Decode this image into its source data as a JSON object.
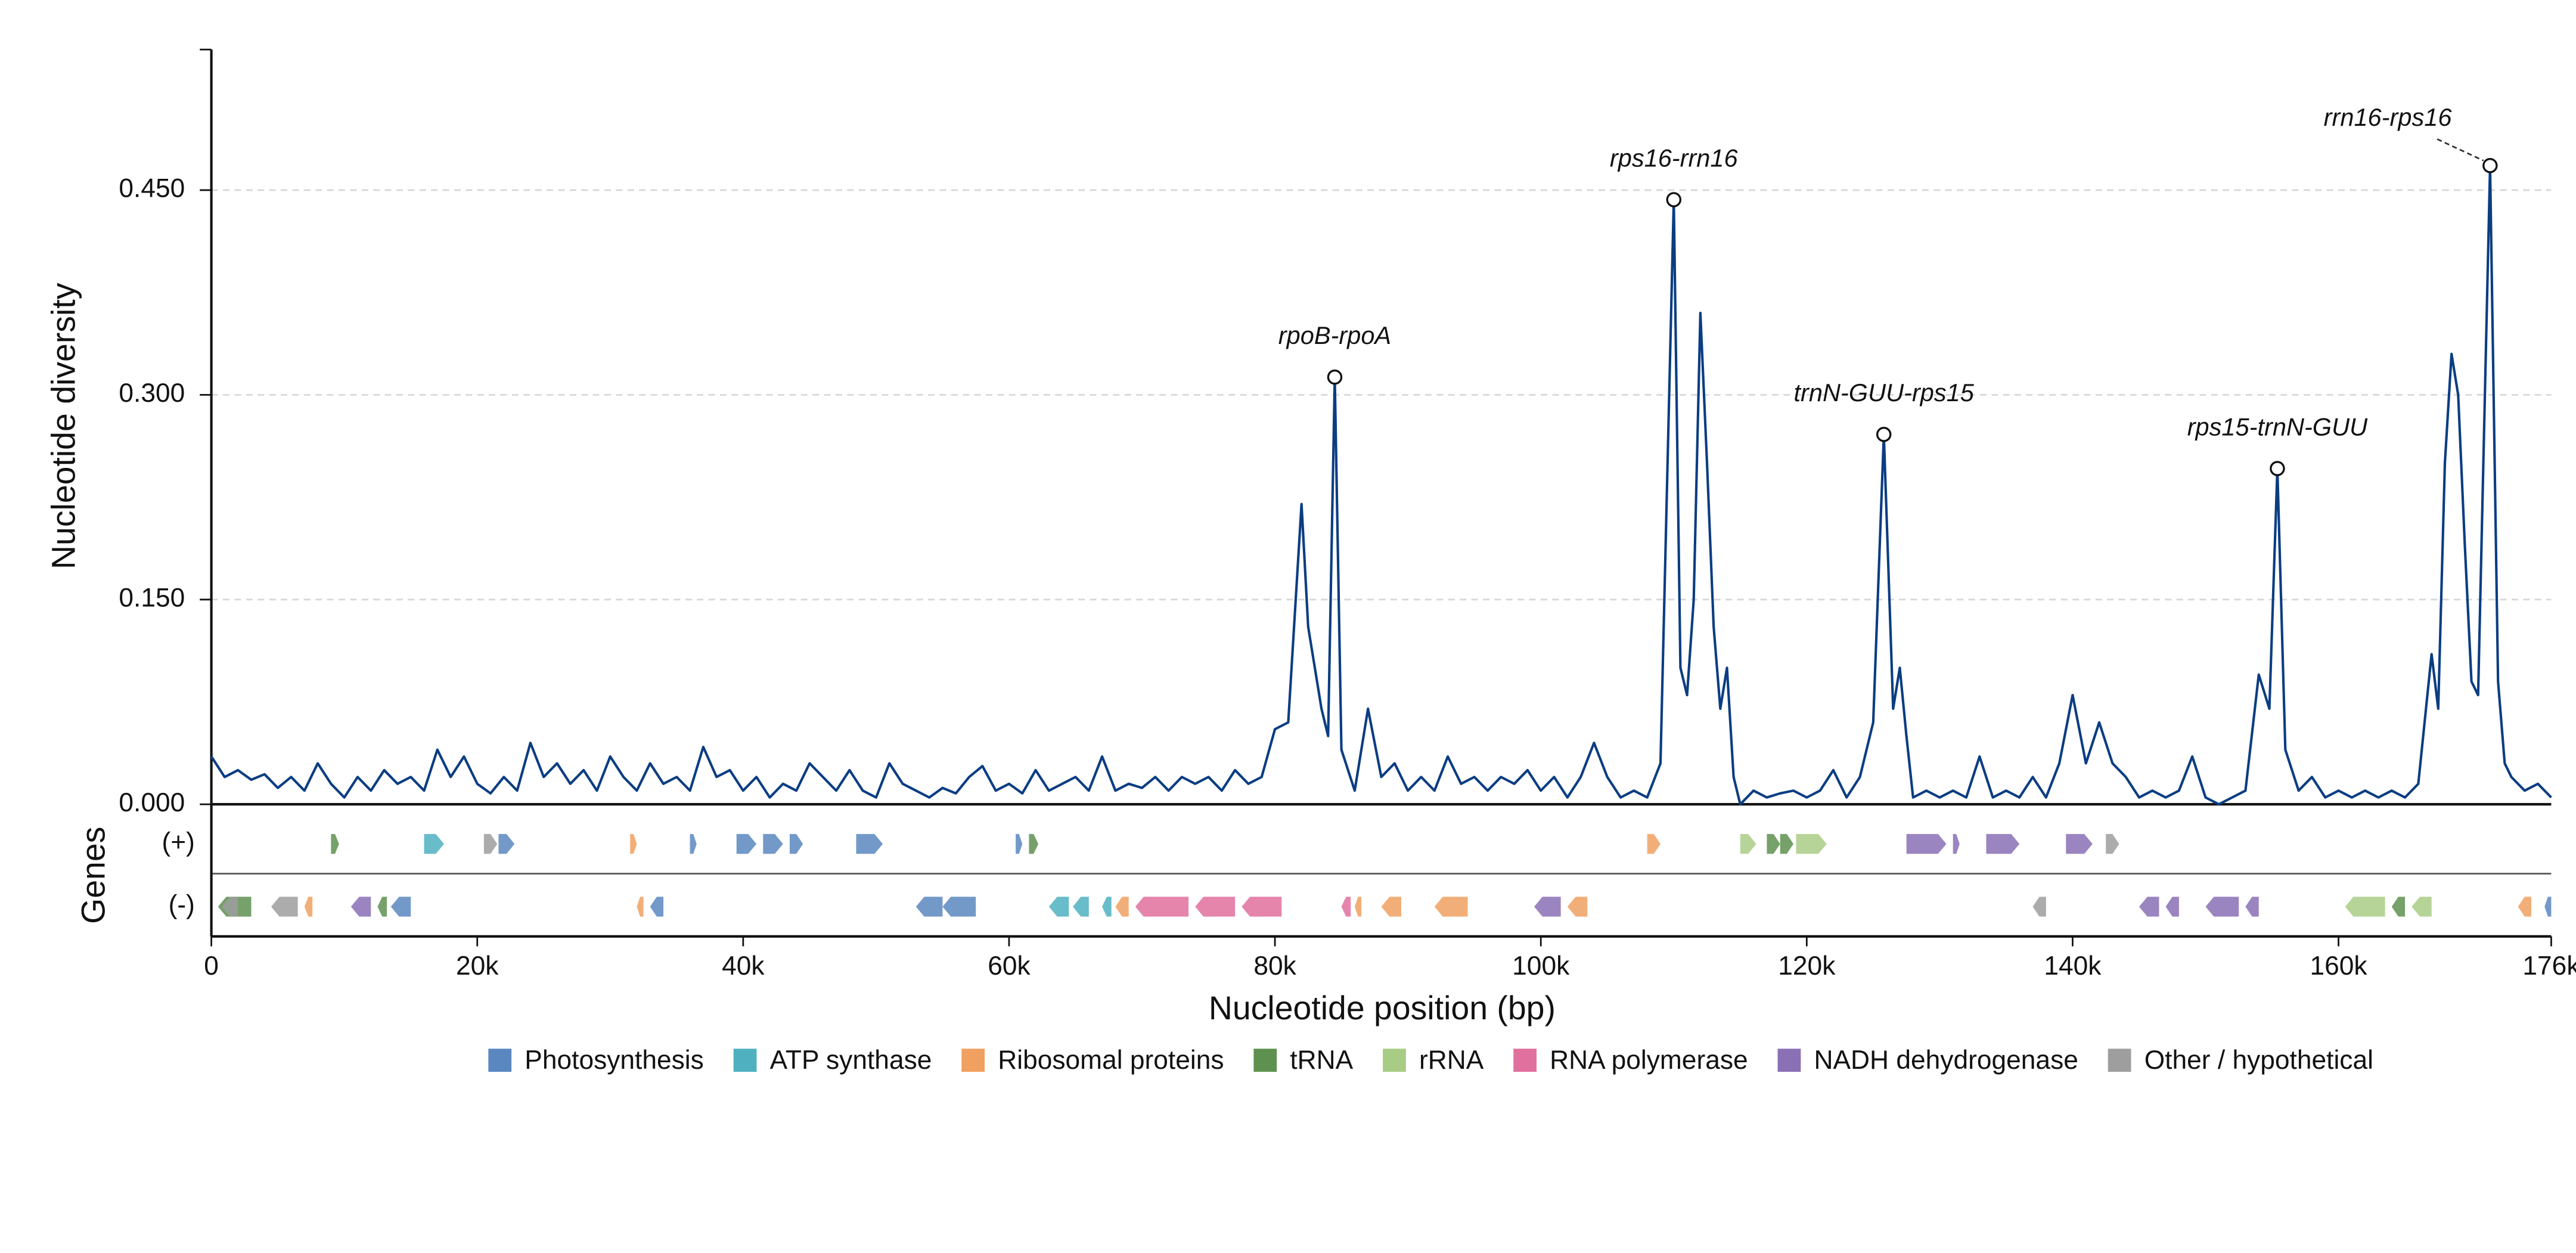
{
  "chart_data": {
    "type": "line",
    "y_label": "Nucleotide diversity",
    "x_label": "Nucleotide position (bp)",
    "track_label": "Genes",
    "strand_labels": [
      "(+)",
      "(-)"
    ],
    "color": "#0b3d82",
    "xlim": [
      0,
      176000
    ],
    "ylim": [
      0,
      0.553
    ],
    "xticks": [
      0,
      {
        "value": 20000,
        "label": "20k"
      },
      {
        "value": 40000,
        "label": "40k"
      },
      {
        "value": 60000,
        "label": "60k"
      },
      {
        "value": 80000,
        "label": "80k"
      },
      {
        "value": 100000,
        "label": "100k"
      },
      {
        "value": 120000,
        "label": "120k"
      },
      {
        "value": 140000,
        "label": "140k"
      },
      {
        "value": 160000,
        "label": "160k"
      },
      {
        "value": 176000,
        "label": "176k"
      }
    ],
    "yticks": [
      {
        "value": 0,
        "label": "0.000"
      },
      {
        "value": 0.15,
        "label": "0.150"
      },
      {
        "value": 0.3,
        "label": "0.300"
      },
      {
        "value": 0.45,
        "label": "0.450"
      }
    ],
    "grid": true,
    "x": [
      0,
      1000,
      2000,
      3000,
      4000,
      5000,
      6000,
      7000,
      8000,
      9000,
      10000,
      11000,
      12000,
      13000,
      14000,
      15000,
      16000,
      17000,
      18000,
      19000,
      20000,
      21000,
      22000,
      23000,
      24000,
      25000,
      26000,
      27000,
      28000,
      29000,
      30000,
      31000,
      32000,
      33000,
      34000,
      35000,
      36000,
      37000,
      38000,
      39000,
      40000,
      41000,
      42000,
      43000,
      44000,
      45000,
      46000,
      47000,
      48000,
      49000,
      50000,
      51000,
      52000,
      53000,
      54000,
      55000,
      56000,
      57000,
      58000,
      59000,
      60000,
      61000,
      62000,
      63000,
      64000,
      65000,
      66000,
      67000,
      68000,
      69000,
      70000,
      71000,
      72000,
      73000,
      74000,
      75000,
      76000,
      77000,
      78000,
      79000,
      80000,
      81000,
      82000,
      82500,
      83000,
      83500,
      84000,
      84500,
      85000,
      86000,
      87000,
      88000,
      89000,
      90000,
      91000,
      92000,
      93000,
      94000,
      95000,
      96000,
      97000,
      98000,
      99000,
      100000,
      101000,
      102000,
      103000,
      104000,
      105000,
      106000,
      107000,
      108000,
      109000,
      110000,
      110500,
      111000,
      111500,
      112000,
      112500,
      113000,
      113500,
      114000,
      114500,
      115000,
      116000,
      117000,
      118000,
      119000,
      120000,
      121000,
      122000,
      123000,
      124000,
      125000,
      125800,
      126500,
      127000,
      127500,
      128000,
      129000,
      130000,
      131000,
      132000,
      133000,
      134000,
      135000,
      136000,
      137000,
      138000,
      139000,
      140000,
      141000,
      142000,
      143000,
      144000,
      145000,
      146000,
      147000,
      148000,
      149000,
      150000,
      151000,
      152000,
      153000,
      154000,
      154800,
      155400,
      156000,
      157000,
      158000,
      159000,
      160000,
      161000,
      162000,
      163000,
      164000,
      165000,
      166000,
      167000,
      167500,
      168000,
      168500,
      169000,
      169500,
      170000,
      170500,
      171400,
      172000,
      172500,
      173000,
      174000,
      175000,
      176000
    ],
    "values": [
      0.035,
      0.02,
      0.025,
      0.018,
      0.022,
      0.012,
      0.02,
      0.01,
      0.03,
      0.015,
      0.005,
      0.02,
      0.01,
      0.025,
      0.015,
      0.02,
      0.01,
      0.04,
      0.02,
      0.035,
      0.015,
      0.008,
      0.02,
      0.01,
      0.045,
      0.02,
      0.03,
      0.015,
      0.025,
      0.01,
      0.035,
      0.02,
      0.01,
      0.03,
      0.015,
      0.02,
      0.01,
      0.042,
      0.02,
      0.025,
      0.01,
      0.02,
      0.005,
      0.015,
      0.01,
      0.03,
      0.02,
      0.01,
      0.025,
      0.01,
      0.005,
      0.03,
      0.015,
      0.01,
      0.005,
      0.012,
      0.008,
      0.02,
      0.028,
      0.01,
      0.015,
      0.008,
      0.025,
      0.01,
      0.015,
      0.02,
      0.01,
      0.035,
      0.01,
      0.015,
      0.012,
      0.02,
      0.01,
      0.02,
      0.015,
      0.02,
      0.01,
      0.025,
      0.015,
      0.02,
      0.055,
      0.06,
      0.22,
      0.13,
      0.1,
      0.07,
      0.05,
      0.313,
      0.04,
      0.01,
      0.07,
      0.02,
      0.03,
      0.01,
      0.02,
      0.01,
      0.035,
      0.015,
      0.02,
      0.01,
      0.02,
      0.015,
      0.025,
      0.01,
      0.02,
      0.005,
      0.02,
      0.045,
      0.02,
      0.005,
      0.01,
      0.005,
      0.03,
      0.443,
      0.1,
      0.08,
      0.15,
      0.36,
      0.25,
      0.13,
      0.07,
      0.1,
      0.02,
      0,
      0.01,
      0.005,
      0.008,
      0.01,
      0.005,
      0.01,
      0.025,
      0.005,
      0.02,
      0.06,
      0.271,
      0.07,
      0.1,
      0.05,
      0.005,
      0.01,
      0.005,
      0.01,
      0.005,
      0.035,
      0.005,
      0.01,
      0.005,
      0.02,
      0.005,
      0.03,
      0.08,
      0.03,
      0.06,
      0.03,
      0.02,
      0.005,
      0.01,
      0.005,
      0.01,
      0.035,
      0.005,
      0,
      0.005,
      0.01,
      0.095,
      0.07,
      0.246,
      0.04,
      0.01,
      0.02,
      0.005,
      0.01,
      0.005,
      0.01,
      0.005,
      0.01,
      0.005,
      0.015,
      0.11,
      0.07,
      0.25,
      0.33,
      0.3,
      0.19,
      0.09,
      0.08,
      0.468,
      0.09,
      0.03,
      0.02,
      0.01,
      0.015,
      0.005
    ],
    "annotations": [
      {
        "label": "rpoB-rpoA",
        "x": 84500,
        "y": 0.313
      },
      {
        "label": "rps16-rrn16",
        "x": 110000,
        "y": 0.443
      },
      {
        "label": "trnN-GUU-rps15",
        "x": 125800,
        "y": 0.271
      },
      {
        "label": "rps15-trnN-GUU",
        "x": 155400,
        "y": 0.246
      },
      {
        "label": "rrn16-rps16",
        "x": 171400,
        "y": 0.468
      }
    ],
    "legend": [
      {
        "name": "Photosynthesis",
        "color": "#5b87c0"
      },
      {
        "name": "ATP synthase",
        "color": "#4fb0c0"
      },
      {
        "name": "Ribosomal proteins",
        "color": "#f0a060"
      },
      {
        "name": "tRNA",
        "color": "#5e9150"
      },
      {
        "name": "rRNA",
        "color": "#a9cc85"
      },
      {
        "name": "RNA polymerase",
        "color": "#e0709d"
      },
      {
        "name": "NADH dehydrogenase",
        "color": "#8a70b5"
      },
      {
        "name": "Other / hypothetical",
        "color": "#9e9e9e"
      }
    ],
    "genes": [
      {
        "start": 9000,
        "end": 9600,
        "strand": "+",
        "category": 3
      },
      {
        "start": 16000,
        "end": 17500,
        "strand": "+",
        "category": 1
      },
      {
        "start": 20500,
        "end": 21500,
        "strand": "+",
        "category": 7
      },
      {
        "start": 21600,
        "end": 22800,
        "strand": "+",
        "category": 0
      },
      {
        "start": 31500,
        "end": 32000,
        "strand": "+",
        "category": 2
      },
      {
        "start": 36000,
        "end": 36500,
        "strand": "+",
        "category": 0
      },
      {
        "start": 39500,
        "end": 41000,
        "strand": "+",
        "category": 0
      },
      {
        "start": 41500,
        "end": 43000,
        "strand": "+",
        "category": 0
      },
      {
        "start": 43500,
        "end": 44500,
        "strand": "+",
        "category": 0
      },
      {
        "start": 48500,
        "end": 50500,
        "strand": "+",
        "category": 0
      },
      {
        "start": 60500,
        "end": 61000,
        "strand": "+",
        "category": 0
      },
      {
        "start": 61500,
        "end": 62200,
        "strand": "+",
        "category": 3
      },
      {
        "start": 108000,
        "end": 109000,
        "strand": "+",
        "category": 2
      },
      {
        "start": 115000,
        "end": 116200,
        "strand": "+",
        "category": 4
      },
      {
        "start": 117000,
        "end": 118000,
        "strand": "+",
        "category": 3
      },
      {
        "start": 118000,
        "end": 119000,
        "strand": "+",
        "category": 3
      },
      {
        "start": 119200,
        "end": 121500,
        "strand": "+",
        "category": 4
      },
      {
        "start": 127500,
        "end": 130500,
        "strand": "+",
        "category": 6
      },
      {
        "start": 131000,
        "end": 131500,
        "strand": "+",
        "category": 6
      },
      {
        "start": 133500,
        "end": 136000,
        "strand": "+",
        "category": 6
      },
      {
        "start": 139500,
        "end": 141500,
        "strand": "+",
        "category": 6
      },
      {
        "start": 142500,
        "end": 143500,
        "strand": "+",
        "category": 7
      },
      {
        "start": 500,
        "end": 3000,
        "strand": "-",
        "category": 3
      },
      {
        "start": 800,
        "end": 2000,
        "strand": "-",
        "category": 7
      },
      {
        "start": 4500,
        "end": 6500,
        "strand": "-",
        "category": 7
      },
      {
        "start": 7000,
        "end": 7600,
        "strand": "-",
        "category": 2
      },
      {
        "start": 10500,
        "end": 12000,
        "strand": "-",
        "category": 6
      },
      {
        "start": 12500,
        "end": 13200,
        "strand": "-",
        "category": 3
      },
      {
        "start": 13500,
        "end": 15000,
        "strand": "-",
        "category": 0
      },
      {
        "start": 32000,
        "end": 32500,
        "strand": "-",
        "category": 2
      },
      {
        "start": 33000,
        "end": 34000,
        "strand": "-",
        "category": 0
      },
      {
        "start": 53000,
        "end": 55000,
        "strand": "-",
        "category": 0
      },
      {
        "start": 55000,
        "end": 57500,
        "strand": "-",
        "category": 0
      },
      {
        "start": 63000,
        "end": 64500,
        "strand": "-",
        "category": 1
      },
      {
        "start": 64800,
        "end": 66000,
        "strand": "-",
        "category": 1
      },
      {
        "start": 67000,
        "end": 67700,
        "strand": "-",
        "category": 1
      },
      {
        "start": 68000,
        "end": 69000,
        "strand": "-",
        "category": 2
      },
      {
        "start": 69500,
        "end": 73500,
        "strand": "-",
        "category": 5
      },
      {
        "start": 74000,
        "end": 77000,
        "strand": "-",
        "category": 5
      },
      {
        "start": 77500,
        "end": 80500,
        "strand": "-",
        "category": 5
      },
      {
        "start": 85000,
        "end": 85700,
        "strand": "-",
        "category": 5
      },
      {
        "start": 86000,
        "end": 86500,
        "strand": "-",
        "category": 2
      },
      {
        "start": 88000,
        "end": 89500,
        "strand": "-",
        "category": 2
      },
      {
        "start": 92000,
        "end": 94500,
        "strand": "-",
        "category": 2
      },
      {
        "start": 99500,
        "end": 101500,
        "strand": "-",
        "category": 6
      },
      {
        "start": 102000,
        "end": 103500,
        "strand": "-",
        "category": 2
      },
      {
        "start": 137000,
        "end": 138000,
        "strand": "-",
        "category": 7
      },
      {
        "start": 145000,
        "end": 146500,
        "strand": "-",
        "category": 6
      },
      {
        "start": 147000,
        "end": 148000,
        "strand": "-",
        "category": 6
      },
      {
        "start": 150000,
        "end": 152500,
        "strand": "-",
        "category": 6
      },
      {
        "start": 153000,
        "end": 154000,
        "strand": "-",
        "category": 6
      },
      {
        "start": 160500,
        "end": 163500,
        "strand": "-",
        "category": 4
      },
      {
        "start": 164000,
        "end": 165000,
        "strand": "-",
        "category": 3
      },
      {
        "start": 165500,
        "end": 167000,
        "strand": "-",
        "category": 4
      },
      {
        "start": 173500,
        "end": 174500,
        "strand": "-",
        "category": 2
      },
      {
        "start": 175500,
        "end": 176000,
        "strand": "-",
        "category": 0
      }
    ]
  }
}
